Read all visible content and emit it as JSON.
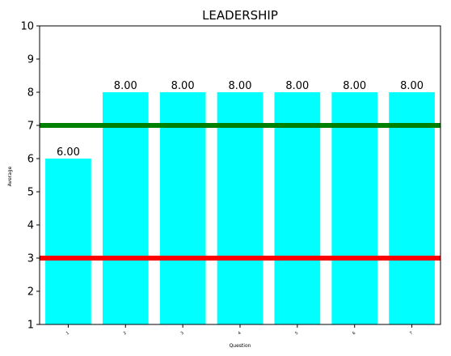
{
  "chart_data": {
    "type": "bar",
    "title": "LEADERSHIP",
    "xlabel": "Question",
    "ylabel": "Average",
    "categories": [
      "1",
      "2",
      "3",
      "4",
      "5",
      "6",
      "7"
    ],
    "values": [
      6,
      8,
      8,
      8,
      8,
      8,
      8
    ],
    "data_labels": [
      "6.00",
      "8.00",
      "8.00",
      "8.00",
      "8.00",
      "8.00",
      "8.00"
    ],
    "ylim": [
      1,
      10
    ],
    "yticks": [
      "1",
      "2",
      "3",
      "4",
      "5",
      "6",
      "7",
      "8",
      "9",
      "10"
    ],
    "bar_color": "#00ffff",
    "reference_lines": [
      {
        "y": 7,
        "color": "#008000"
      },
      {
        "y": 3,
        "color": "#ff0000"
      }
    ],
    "grid": false,
    "legend": false
  }
}
